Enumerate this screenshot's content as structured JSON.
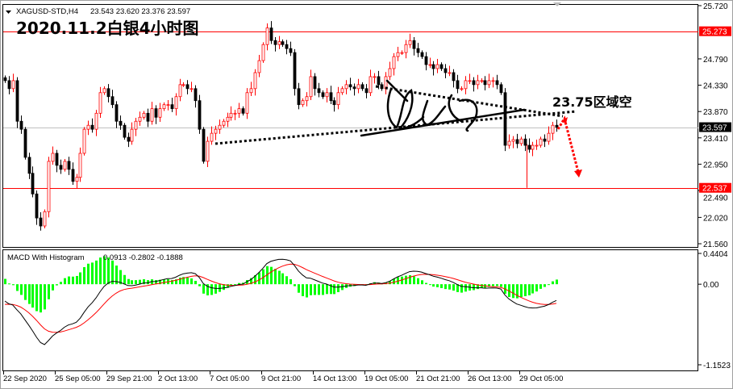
{
  "header": {
    "symbol": "XAGUSD-STD,H4",
    "ohlc": "23.543 23.620 23.376 23.597",
    "annotation_title": "2020.11.2白银4小时图"
  },
  "annotation": {
    "note": "23.75区域空",
    "arrow_color": "#ff0000"
  },
  "colors": {
    "bull": "#ff0000",
    "bear": "#000000",
    "level_line": "#ff0000",
    "histogram": "#00ff00",
    "macd_line": "#000000",
    "signal_line": "#ff0000"
  },
  "chart_data": [
    {
      "type": "candlestick",
      "title": "XAGUSD-STD,H4",
      "ylim": [
        21.56,
        25.72
      ],
      "y_ticks": [
        "25.720",
        "24.790",
        "24.330",
        "23.870",
        "23.410",
        "22.950",
        "22.490",
        "22.020",
        "21.560"
      ],
      "x_ticks": [
        "22 Sep 2020",
        "25 Sep 05:00",
        "29 Sep 21:00",
        "2 Oct 13:00",
        "7 Oct 05:00",
        "9 Oct 21:00",
        "14 Oct 13:00",
        "19 Oct 05:00",
        "21 Oct 21:00",
        "26 Oct 13:00",
        "29 Oct 05:00"
      ],
      "levels": [
        {
          "value": 25.273,
          "label": "25.273",
          "color": "#ff0000"
        },
        {
          "value": 23.597,
          "label": "23.597",
          "color": "#000000"
        },
        {
          "value": 22.537,
          "label": "22.537",
          "color": "#ff0000"
        }
      ],
      "closes": [
        24.41,
        24.27,
        24.41,
        23.7,
        23.56,
        23.07,
        22.79,
        22.43,
        22.01,
        21.87,
        22.12,
        23.0,
        23.14,
        22.93,
        22.86,
        23.0,
        22.86,
        22.65,
        22.72,
        23.14,
        23.56,
        23.63,
        23.56,
        23.84,
        24.2,
        24.27,
        24.13,
        23.99,
        23.7,
        23.63,
        23.42,
        23.35,
        23.56,
        23.7,
        23.77,
        23.84,
        23.7,
        23.92,
        23.77,
        23.92,
        23.99,
        23.99,
        23.92,
        24.13,
        24.34,
        24.34,
        24.27,
        24.27,
        24.06,
        23.56,
        23.0,
        23.35,
        23.49,
        23.56,
        23.63,
        23.7,
        23.77,
        23.84,
        23.84,
        23.92,
        23.84,
        24.2,
        24.27,
        24.55,
        24.76,
        25.04,
        25.33,
        25.11,
        25.04,
        25.09,
        25.04,
        24.97,
        24.9,
        24.27,
        23.99,
        24.06,
        24.13,
        24.48,
        24.27,
        24.2,
        24.13,
        24.2,
        24.06,
        23.99,
        24.2,
        24.27,
        24.34,
        24.3,
        24.27,
        24.34,
        24.27,
        24.2,
        24.48,
        24.48,
        24.34,
        24.27,
        24.48,
        24.62,
        24.83,
        24.9,
        24.9,
        25.04,
        25.11,
        24.97,
        24.9,
        24.83,
        24.69,
        24.69,
        24.62,
        24.69,
        24.62,
        24.55,
        24.55,
        24.41,
        24.27,
        24.27,
        24.41,
        24.41,
        24.34,
        24.41,
        24.41,
        24.34,
        24.41,
        24.41,
        24.34,
        24.2,
        23.28,
        23.35,
        23.38,
        23.31,
        23.39,
        23.28,
        23.21,
        23.28,
        23.28,
        23.39,
        23.35,
        23.49,
        23.63,
        23.597
      ]
    },
    {
      "type": "macd",
      "title": "MACD With Histogram",
      "values": "0.0913 -0.2802 -0.1888",
      "ylim": [
        -1.1523,
        0.4404
      ],
      "y_ticks": [
        "0.4404",
        "0.00",
        "-1.1523"
      ]
    }
  ]
}
